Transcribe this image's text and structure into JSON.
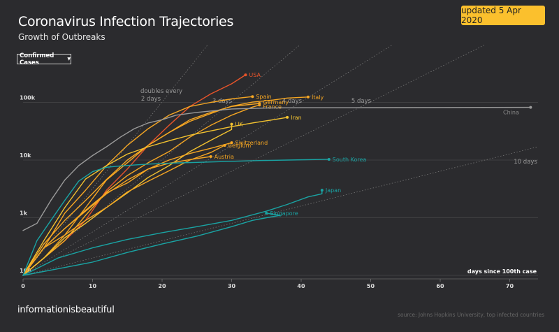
{
  "header": {
    "title": "Coronavirus Infection Trajectories",
    "subtitle": "Growth of Outbreaks",
    "updated": "updated 5 Apr 2020"
  },
  "controls": {
    "metric_selector": "Confirmed Cases"
  },
  "footer": {
    "brand": "informationisbeautiful",
    "source": "source: Johns Hopkins University, top infected countries"
  },
  "colors": {
    "background": "#2b2b2e",
    "badge": "#fbc02d",
    "grid": "#555555",
    "guide": "#777777"
  },
  "chart_data": {
    "type": "line",
    "title": "Coronavirus Infection Trajectories",
    "subtitle": "Growth of Outbreaks",
    "xlabel": "days since 100th case",
    "ylabel": "Confirmed Cases",
    "yscale": "log",
    "xlim": [
      0,
      74
    ],
    "ylim": [
      100,
      1000000
    ],
    "x_ticks": [
      0,
      10,
      20,
      30,
      40,
      50,
      60,
      70
    ],
    "y_ticks": [
      {
        "value": 100,
        "label": "100"
      },
      {
        "value": 1000,
        "label": "1k"
      },
      {
        "value": 10000,
        "label": "10k"
      },
      {
        "value": 100000,
        "label": "100k"
      }
    ],
    "guides": [
      {
        "label": "doubles every",
        "label2": "2 days",
        "double_days": 2
      },
      {
        "label": "3 days",
        "double_days": 3
      },
      {
        "label": "4 days",
        "double_days": 4
      },
      {
        "label": "5 days",
        "double_days": 5
      },
      {
        "label": "10 days",
        "double_days": 10
      }
    ],
    "series": [
      {
        "name": "USA",
        "color": "#e8542a",
        "points": [
          [
            0,
            100
          ],
          [
            3,
            200
          ],
          [
            6,
            400
          ],
          [
            9,
            900
          ],
          [
            12,
            3000
          ],
          [
            15,
            7000
          ],
          [
            18,
            18000
          ],
          [
            21,
            40000
          ],
          [
            24,
            85000
          ],
          [
            27,
            140000
          ],
          [
            30,
            210000
          ],
          [
            32,
            300000
          ]
        ]
      },
      {
        "name": "Spain",
        "color": "#f5a623",
        "points": [
          [
            0,
            100
          ],
          [
            3,
            300
          ],
          [
            6,
            1200
          ],
          [
            9,
            3000
          ],
          [
            12,
            8000
          ],
          [
            15,
            18000
          ],
          [
            18,
            35000
          ],
          [
            21,
            60000
          ],
          [
            24,
            85000
          ],
          [
            27,
            100000
          ],
          [
            30,
            115000
          ],
          [
            33,
            126000
          ]
        ]
      },
      {
        "name": "Italy",
        "color": "#f5a623",
        "points": [
          [
            0,
            100
          ],
          [
            3,
            350
          ],
          [
            6,
            900
          ],
          [
            9,
            2000
          ],
          [
            12,
            4600
          ],
          [
            15,
            10000
          ],
          [
            18,
            18000
          ],
          [
            21,
            30000
          ],
          [
            24,
            47000
          ],
          [
            27,
            64000
          ],
          [
            30,
            86000
          ],
          [
            33,
            101000
          ],
          [
            36,
            110000
          ],
          [
            38,
            119000
          ],
          [
            41,
            124000
          ]
        ]
      },
      {
        "name": "Germany",
        "color": "#f5a623",
        "points": [
          [
            0,
            100
          ],
          [
            3,
            200
          ],
          [
            6,
            500
          ],
          [
            9,
            1500
          ],
          [
            12,
            4500
          ],
          [
            15,
            9000
          ],
          [
            18,
            18000
          ],
          [
            21,
            30000
          ],
          [
            24,
            50000
          ],
          [
            27,
            67000
          ],
          [
            30,
            85000
          ],
          [
            34,
            96000
          ]
        ]
      },
      {
        "name": "France",
        "color": "#f5a623",
        "points": [
          [
            0,
            100
          ],
          [
            3,
            200
          ],
          [
            6,
            400
          ],
          [
            9,
            1100
          ],
          [
            12,
            2800
          ],
          [
            15,
            5400
          ],
          [
            18,
            9000
          ],
          [
            21,
            14000
          ],
          [
            24,
            25000
          ],
          [
            27,
            40000
          ],
          [
            30,
            60000
          ],
          [
            33,
            83000
          ],
          [
            34,
            90000
          ]
        ]
      },
      {
        "name": "Iran",
        "color": "#f2c230",
        "points": [
          [
            0,
            100
          ],
          [
            3,
            400
          ],
          [
            6,
            1500
          ],
          [
            9,
            4700
          ],
          [
            12,
            8000
          ],
          [
            15,
            12700
          ],
          [
            18,
            17000
          ],
          [
            21,
            21600
          ],
          [
            24,
            27000
          ],
          [
            27,
            32000
          ],
          [
            30,
            38000
          ],
          [
            33,
            44000
          ],
          [
            36,
            50000
          ],
          [
            38,
            55000
          ]
        ]
      },
      {
        "name": "UK",
        "color": "#f2c230",
        "points": [
          [
            0,
            100
          ],
          [
            3,
            200
          ],
          [
            6,
            450
          ],
          [
            9,
            800
          ],
          [
            12,
            1500
          ],
          [
            15,
            2700
          ],
          [
            18,
            5000
          ],
          [
            21,
            8000
          ],
          [
            24,
            14000
          ],
          [
            27,
            22000
          ],
          [
            30,
            34000
          ],
          [
            30,
            42000
          ]
        ]
      },
      {
        "name": "Switzerland",
        "color": "#f5a623",
        "points": [
          [
            0,
            100
          ],
          [
            3,
            300
          ],
          [
            6,
            650
          ],
          [
            9,
            1350
          ],
          [
            12,
            2700
          ],
          [
            15,
            4000
          ],
          [
            18,
            7000
          ],
          [
            21,
            10000
          ],
          [
            24,
            13000
          ],
          [
            27,
            16000
          ],
          [
            30,
            20000
          ]
        ]
      },
      {
        "name": "Belgium",
        "color": "#f5a623",
        "points": [
          [
            0,
            100
          ],
          [
            3,
            300
          ],
          [
            6,
            500
          ],
          [
            9,
            900
          ],
          [
            12,
            1500
          ],
          [
            15,
            2800
          ],
          [
            18,
            4300
          ],
          [
            21,
            6500
          ],
          [
            24,
            10000
          ],
          [
            27,
            13500
          ],
          [
            29,
            18000
          ]
        ]
      },
      {
        "name": "Austria",
        "color": "#f5a623",
        "points": [
          [
            0,
            100
          ],
          [
            3,
            300
          ],
          [
            6,
            650
          ],
          [
            9,
            1300
          ],
          [
            12,
            2600
          ],
          [
            15,
            4500
          ],
          [
            18,
            7000
          ],
          [
            21,
            8800
          ],
          [
            24,
            10200
          ],
          [
            27,
            11500
          ]
        ]
      },
      {
        "name": "China",
        "color": "#9a9a9a",
        "points": [
          [
            0,
            600
          ],
          [
            2,
            800
          ],
          [
            4,
            2000
          ],
          [
            6,
            4500
          ],
          [
            8,
            8000
          ],
          [
            10,
            12000
          ],
          [
            12,
            17000
          ],
          [
            14,
            25000
          ],
          [
            16,
            35000
          ],
          [
            18,
            44000
          ],
          [
            20,
            50000
          ],
          [
            22,
            60000
          ],
          [
            25,
            67000
          ],
          [
            30,
            77000
          ],
          [
            35,
            80000
          ],
          [
            40,
            80800
          ],
          [
            50,
            81000
          ],
          [
            60,
            81500
          ],
          [
            73,
            82000
          ]
        ]
      },
      {
        "name": "South Korea",
        "color": "#1aa3a3",
        "points": [
          [
            0,
            100
          ],
          [
            2,
            400
          ],
          [
            4,
            900
          ],
          [
            6,
            2000
          ],
          [
            8,
            4300
          ],
          [
            10,
            6300
          ],
          [
            12,
            7500
          ],
          [
            14,
            7900
          ],
          [
            16,
            8200
          ],
          [
            18,
            8500
          ],
          [
            22,
            8900
          ],
          [
            26,
            9200
          ],
          [
            30,
            9500
          ],
          [
            34,
            9800
          ],
          [
            38,
            10000
          ],
          [
            44,
            10300
          ]
        ]
      },
      {
        "name": "Japan",
        "color": "#1aa3a3",
        "points": [
          [
            0,
            100
          ],
          [
            5,
            200
          ],
          [
            10,
            300
          ],
          [
            15,
            420
          ],
          [
            20,
            550
          ],
          [
            25,
            700
          ],
          [
            30,
            900
          ],
          [
            35,
            1300
          ],
          [
            38,
            1700
          ],
          [
            41,
            2300
          ],
          [
            43,
            2600
          ],
          [
            43,
            3000
          ]
        ]
      },
      {
        "name": "Singapore",
        "color": "#1aa3a3",
        "points": [
          [
            0,
            100
          ],
          [
            5,
            130
          ],
          [
            10,
            170
          ],
          [
            15,
            250
          ],
          [
            20,
            350
          ],
          [
            25,
            480
          ],
          [
            30,
            700
          ],
          [
            33,
            900
          ],
          [
            35,
            1000
          ],
          [
            37,
            1100
          ],
          [
            35,
            1200
          ]
        ]
      }
    ]
  }
}
